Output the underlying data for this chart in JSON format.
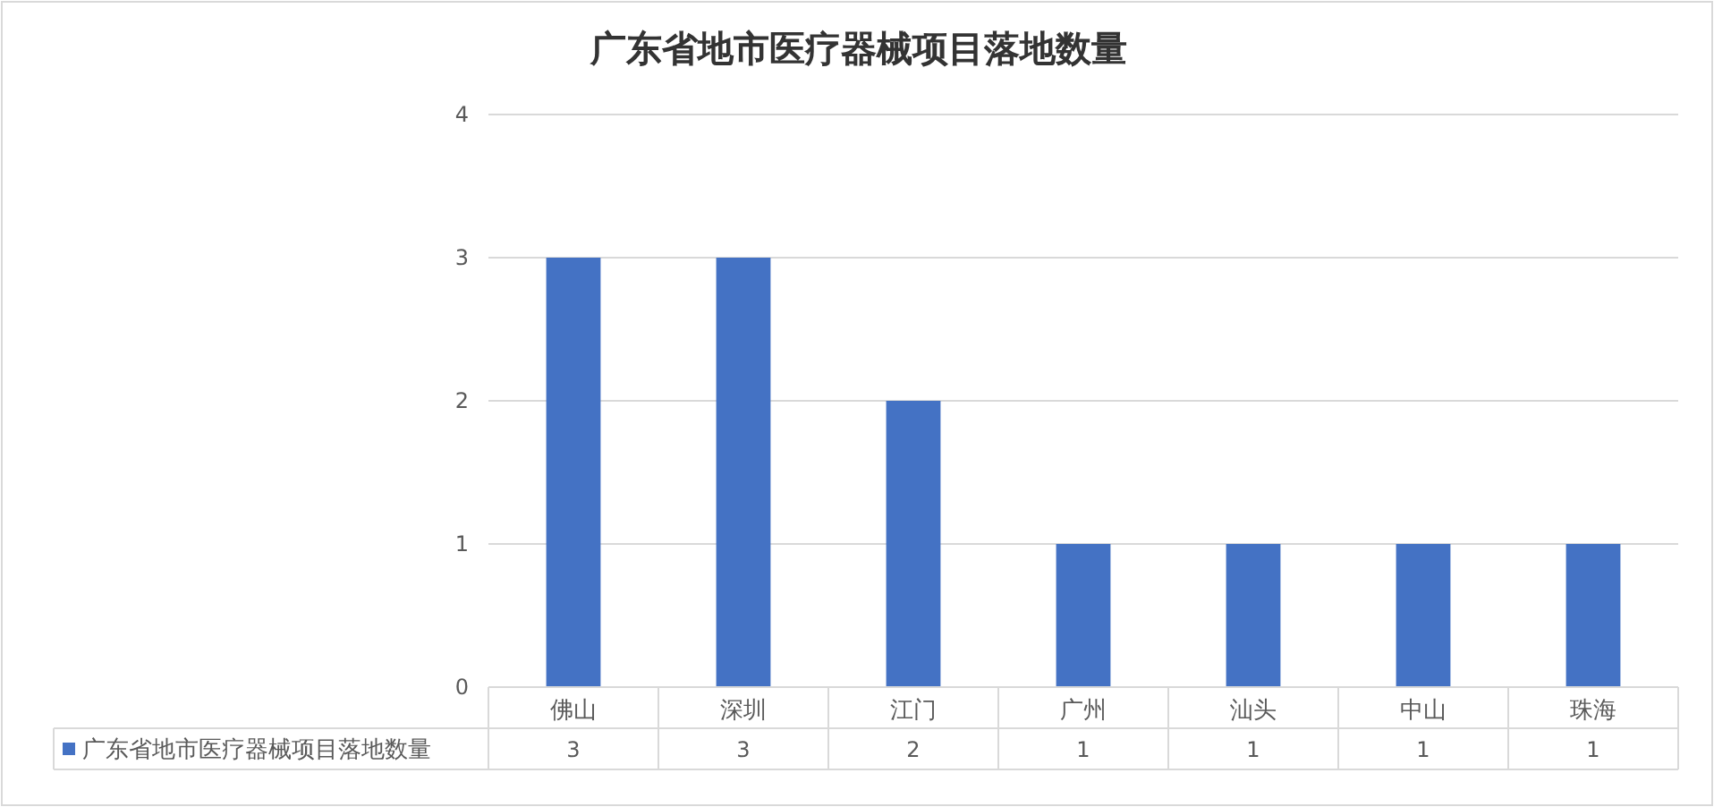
{
  "chart_data": {
    "type": "bar",
    "title": "广东省地市医疗器械项目落地数量",
    "categories": [
      "佛山",
      "深圳",
      "江门",
      "广州",
      "汕头",
      "中山",
      "珠海"
    ],
    "series": [
      {
        "name": "广东省地市医疗器械项目落地数量",
        "color": "#4472c4",
        "values": [
          3,
          3,
          2,
          1,
          1,
          1,
          1
        ]
      }
    ],
    "ylim": [
      0,
      4
    ],
    "yticks": [
      0,
      1,
      2,
      3,
      4
    ],
    "grid": "y",
    "data_labels": true,
    "legend": "bottom left"
  }
}
